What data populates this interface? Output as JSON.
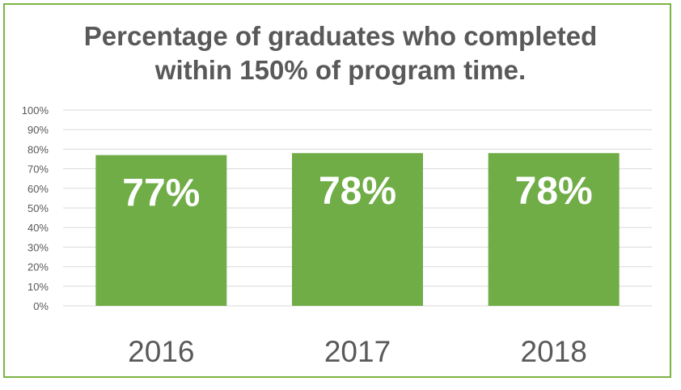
{
  "chart_data": {
    "type": "bar",
    "title_lines": [
      "Percentage of graduates who completed",
      "within 150% of program time."
    ],
    "categories": [
      "2016",
      "2017",
      "2018"
    ],
    "values": [
      77,
      78,
      78
    ],
    "data_labels": [
      "77%",
      "78%",
      "78%"
    ],
    "y_ticks": [
      "0%",
      "10%",
      "20%",
      "30%",
      "40%",
      "50%",
      "60%",
      "70%",
      "80%",
      "90%",
      "100%"
    ],
    "ylim": [
      0,
      100
    ],
    "xlabel": "",
    "ylabel": "",
    "grid": true,
    "legend": "none",
    "colors": {
      "bar": "#70ad47",
      "frame": "#7cb342",
      "gridline": "#d9d9d9",
      "title": "#595959",
      "tick_label": "#595959",
      "data_label": "#ffffff"
    }
  }
}
